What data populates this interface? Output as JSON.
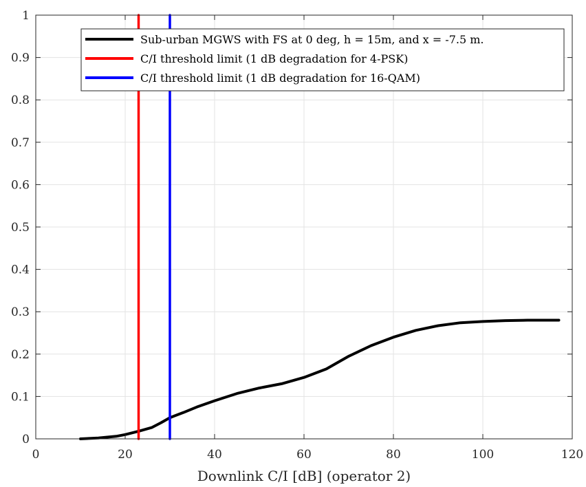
{
  "chart_data": {
    "type": "line",
    "title": "",
    "xlabel": "Downlink C/I [dB] (operator 2)",
    "ylabel": "",
    "xlim": [
      0,
      120
    ],
    "ylim": [
      0,
      1
    ],
    "xticks": [
      0,
      20,
      40,
      60,
      80,
      100,
      120
    ],
    "yticks": [
      0,
      0.1,
      0.2,
      0.3,
      0.4,
      0.5,
      0.6,
      0.7,
      0.8,
      0.9,
      1
    ],
    "grid": true,
    "legend_position": "top-right",
    "series": [
      {
        "name": "Sub-urban MGWS with FS at 0 deg, h = 15m, and x = -7.5 m.",
        "color": "#000000",
        "x": [
          10,
          14,
          18,
          20,
          23,
          26,
          28,
          30,
          33,
          36,
          40,
          45,
          50,
          55,
          60,
          65,
          70,
          75,
          80,
          85,
          90,
          95,
          100,
          105,
          110,
          117
        ],
        "y": [
          0.0,
          0.002,
          0.006,
          0.01,
          0.018,
          0.027,
          0.038,
          0.05,
          0.062,
          0.075,
          0.09,
          0.107,
          0.12,
          0.13,
          0.145,
          0.165,
          0.195,
          0.22,
          0.24,
          0.256,
          0.267,
          0.274,
          0.277,
          0.279,
          0.28,
          0.28
        ]
      },
      {
        "name": "C/I threshold limit (1 dB degradation for 4-PSK)",
        "color": "#ff0000",
        "x": [
          23,
          23
        ],
        "y": [
          0,
          1
        ]
      },
      {
        "name": "C/I threshold limit (1 dB degradation for 16-QAM)",
        "color": "#0000ff",
        "x": [
          30,
          30
        ],
        "y": [
          0,
          1
        ]
      }
    ]
  }
}
